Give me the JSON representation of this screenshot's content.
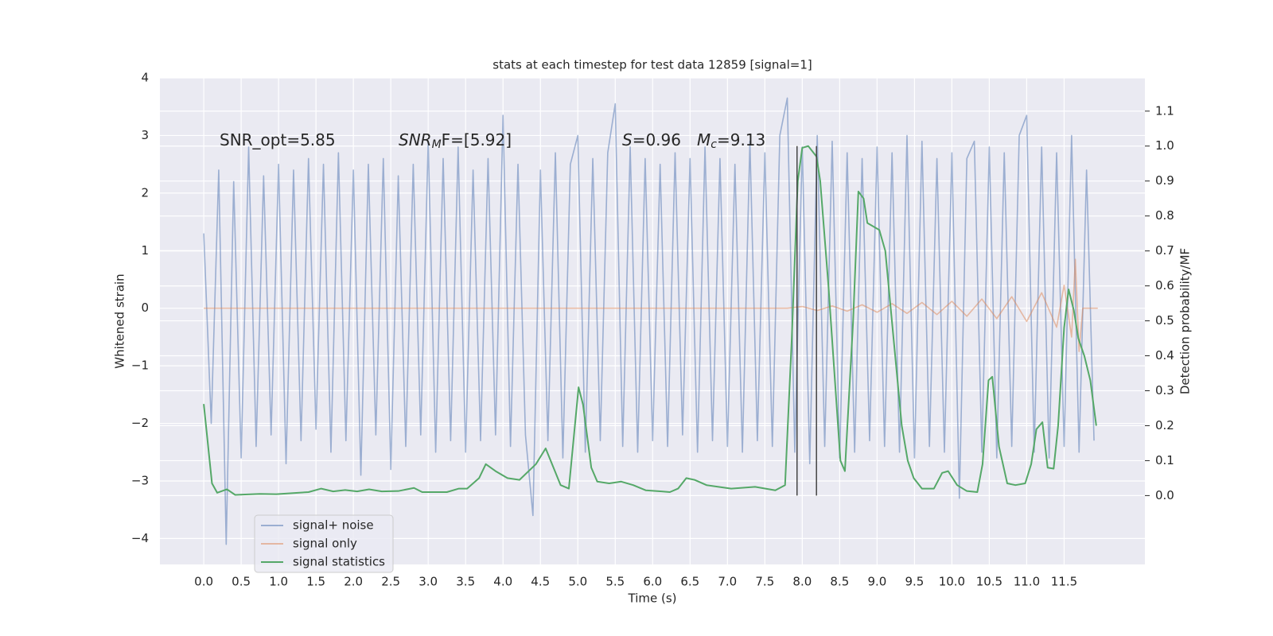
{
  "chart_data": {
    "type": "line",
    "title": "stats at each timestep for test data 12859 [signal=1]",
    "xlabel": "Time (s)",
    "ylabel": "Whitened strain",
    "y2label": "Detection probability/MF",
    "xlim": [
      -0.586,
      12.58
    ],
    "ylim": [
      -4.45,
      4.0
    ],
    "y2lim": [
      -0.197,
      1.195
    ],
    "xticks": [
      {
        "value": 0,
        "label": "0.0"
      },
      0.5,
      {
        "value": 1,
        "label": "1.0"
      },
      1.5,
      {
        "value": 2,
        "label": "2.0"
      },
      2.5,
      {
        "value": 3,
        "label": "3.0"
      },
      3.5,
      {
        "value": 4,
        "label": "4.0"
      },
      4.5,
      {
        "value": 5,
        "label": "5.0"
      },
      5.5,
      {
        "value": 6,
        "label": "6.0"
      },
      6.5,
      {
        "value": 7,
        "label": "7.0"
      },
      7.5,
      {
        "value": 8,
        "label": "8.0"
      },
      8.5,
      {
        "value": 9,
        "label": "9.0"
      },
      9.5,
      {
        "value": 10,
        "label": "10.0"
      },
      10.5,
      {
        "value": 11,
        "label": "11.0"
      },
      11.5
    ],
    "yticks": [
      {
        "value": -4,
        "label": "−4"
      },
      {
        "value": -3,
        "label": "−3"
      },
      {
        "value": -2,
        "label": "−2"
      },
      {
        "value": -1,
        "label": "−1"
      },
      0,
      1,
      2,
      3,
      4
    ],
    "y2ticks": [
      {
        "value": 0,
        "label": "0.0"
      },
      0.1,
      0.2,
      0.3,
      0.4,
      0.5,
      0.6,
      0.7,
      0.8,
      0.9,
      {
        "value": 1,
        "label": "1.0"
      },
      1.1
    ],
    "grid": true,
    "legend": "lower left",
    "series": [
      {
        "name": "signal+ noise",
        "color": "#4c72b0",
        "x": [
          0,
          0.1,
          0.2,
          0.3,
          0.4,
          0.5,
          0.6,
          0.7,
          0.8,
          0.9,
          1,
          1.1,
          1.2,
          1.3,
          1.4,
          1.5,
          1.6,
          1.7,
          1.8,
          1.9,
          2,
          2.1,
          2.2,
          2.3,
          2.4,
          2.5,
          2.6,
          2.7,
          2.8,
          2.9,
          3,
          3.1,
          3.2,
          3.3,
          3.4,
          3.5,
          3.6,
          3.7,
          3.8,
          3.9,
          4,
          4.1,
          4.2,
          4.3,
          4.4,
          4.5,
          4.6,
          4.7,
          4.8,
          4.9,
          5,
          5.1,
          5.2,
          5.3,
          5.4,
          5.5,
          5.6,
          5.7,
          5.8,
          5.9,
          6,
          6.1,
          6.2,
          6.3,
          6.4,
          6.5,
          6.6,
          6.7,
          6.8,
          6.9,
          7,
          7.1,
          7.2,
          7.3,
          7.4,
          7.5,
          7.6,
          7.7,
          7.8,
          7.9,
          8,
          8.1,
          8.2,
          8.3,
          8.4,
          8.5,
          8.6,
          8.7,
          8.8,
          8.9,
          9,
          9.1,
          9.2,
          9.3,
          9.4,
          9.5,
          9.6,
          9.7,
          9.8,
          9.9,
          10,
          10.1,
          10.2,
          10.3,
          10.4,
          10.5,
          10.6,
          10.7,
          10.8,
          10.9,
          11,
          11.1,
          11.2,
          11.3,
          11.4,
          11.5,
          11.6,
          11.7,
          11.8,
          11.9
        ],
        "values": [
          1.3,
          -2.0,
          2.4,
          -4.1,
          2.2,
          -2.6,
          2.8,
          -2.4,
          2.3,
          -2.2,
          2.5,
          -2.7,
          2.4,
          -2.3,
          2.6,
          -2.1,
          2.5,
          -2.5,
          2.7,
          -2.3,
          2.4,
          -2.9,
          2.5,
          -2.2,
          2.6,
          -2.8,
          2.3,
          -2.4,
          2.5,
          -2.2,
          2.9,
          -2.5,
          2.6,
          -2.3,
          2.8,
          -2.5,
          2.4,
          -2.3,
          2.6,
          -2.2,
          3.35,
          -2.4,
          2.5,
          -2.2,
          -3.6,
          2.4,
          -2.3,
          2.7,
          -2.6,
          2.5,
          3.0,
          -2.5,
          2.6,
          -2.3,
          2.7,
          3.55,
          -2.4,
          2.8,
          -2.5,
          2.6,
          -2.3,
          2.5,
          -2.4,
          2.7,
          -2.2,
          2.6,
          -2.5,
          2.8,
          -2.3,
          2.6,
          -2.4,
          2.5,
          -2.5,
          2.9,
          -2.3,
          2.7,
          -2.4,
          3.0,
          3.65,
          -2.5,
          2.8,
          -2.7,
          3.0,
          -2.4,
          2.9,
          -2.6,
          2.7,
          -2.5,
          2.6,
          -2.3,
          2.8,
          -2.4,
          2.7,
          -2.5,
          3.0,
          -2.6,
          2.9,
          -2.4,
          2.6,
          -2.5,
          2.7,
          -3.3,
          2.6,
          2.9,
          -2.5,
          2.8,
          -2.6,
          2.7,
          -2.4,
          3.0,
          3.35,
          -2.5,
          2.8,
          -2.6,
          2.7,
          -2.4,
          3.0,
          -2.5,
          2.4,
          -2.3
        ]
      },
      {
        "name": "signal only",
        "color": "#dd8452",
        "x": [
          0,
          7.8,
          8.0,
          8.2,
          8.4,
          8.6,
          8.8,
          9.0,
          9.2,
          9.4,
          9.6,
          9.8,
          10.0,
          10.2,
          10.4,
          10.6,
          10.8,
          11.0,
          11.2,
          11.4,
          11.5,
          11.6,
          11.65,
          11.7,
          11.75,
          11.95
        ],
        "values": [
          0,
          0,
          0.03,
          -0.04,
          0.04,
          -0.05,
          0.06,
          -0.07,
          0.08,
          -0.09,
          0.1,
          -0.11,
          0.12,
          -0.14,
          0.16,
          -0.18,
          0.2,
          -0.23,
          0.27,
          -0.33,
          0.4,
          -0.5,
          0.85,
          -0.75,
          0,
          0
        ]
      },
      {
        "name": "signal statistics",
        "color": "#55a868",
        "axis": "y2",
        "x": [
          0,
          0.11,
          0.18,
          0.31,
          0.42,
          0.75,
          0.97,
          1.4,
          1.57,
          1.73,
          1.89,
          2.05,
          2.21,
          2.38,
          2.6,
          2.81,
          2.92,
          3.25,
          3.41,
          3.52,
          3.68,
          3.77,
          3.9,
          4.06,
          4.22,
          4.44,
          4.57,
          4.77,
          4.88,
          5.01,
          5.07,
          5.18,
          5.26,
          5.42,
          5.58,
          5.74,
          5.91,
          6.12,
          6.23,
          6.34,
          6.45,
          6.56,
          6.72,
          6.88,
          7.05,
          7.37,
          7.64,
          7.77,
          7.86,
          7.94,
          8.0,
          8.08,
          8.19,
          8.24,
          8.35,
          8.51,
          8.57,
          8.68,
          8.75,
          8.82,
          8.87,
          8.95,
          9.03,
          9.11,
          9.22,
          9.33,
          9.41,
          9.49,
          9.6,
          9.76,
          9.87,
          9.95,
          10.07,
          10.2,
          10.34,
          10.41,
          10.49,
          10.54,
          10.63,
          10.74,
          10.85,
          10.98,
          11.06,
          11.13,
          11.21,
          11.28,
          11.36,
          11.42,
          11.5,
          11.56,
          11.63,
          11.69,
          11.77,
          11.85,
          11.93
        ],
        "values": [
          0.262,
          0.035,
          0.008,
          0.018,
          0.002,
          0.005,
          0.004,
          0.01,
          0.02,
          0.012,
          0.016,
          0.012,
          0.018,
          0.012,
          0.013,
          0.022,
          0.01,
          0.01,
          0.02,
          0.02,
          0.05,
          0.09,
          0.07,
          0.05,
          0.045,
          0.09,
          0.135,
          0.03,
          0.02,
          0.31,
          0.26,
          0.08,
          0.04,
          0.035,
          0.04,
          0.03,
          0.015,
          0.012,
          0.01,
          0.02,
          0.05,
          0.045,
          0.03,
          0.025,
          0.02,
          0.025,
          0.015,
          0.03,
          0.45,
          0.9,
          0.995,
          1.0,
          0.97,
          0.9,
          0.6,
          0.1,
          0.07,
          0.5,
          0.87,
          0.85,
          0.78,
          0.77,
          0.76,
          0.7,
          0.45,
          0.2,
          0.1,
          0.05,
          0.02,
          0.02,
          0.065,
          0.07,
          0.03,
          0.013,
          0.01,
          0.09,
          0.33,
          0.34,
          0.14,
          0.035,
          0.03,
          0.035,
          0.09,
          0.19,
          0.21,
          0.08,
          0.077,
          0.2,
          0.48,
          0.59,
          0.53,
          0.45,
          0.4,
          0.33,
          0.2
        ]
      }
    ],
    "vlines": {
      "x": [
        7.93,
        8.19
      ],
      "ymin": 0,
      "ymax": 1.0,
      "axis": "y2",
      "color": "#444444"
    },
    "annotations": [
      {
        "text": "SNR_opt=5.85"
      },
      {
        "italic": "SNR",
        "sub": "M",
        "text": "F=[5.92]"
      },
      {
        "italic": "S",
        "text": "=0.96"
      },
      {
        "italic": "M",
        "sub": "c",
        "text": "=9.13"
      }
    ]
  }
}
